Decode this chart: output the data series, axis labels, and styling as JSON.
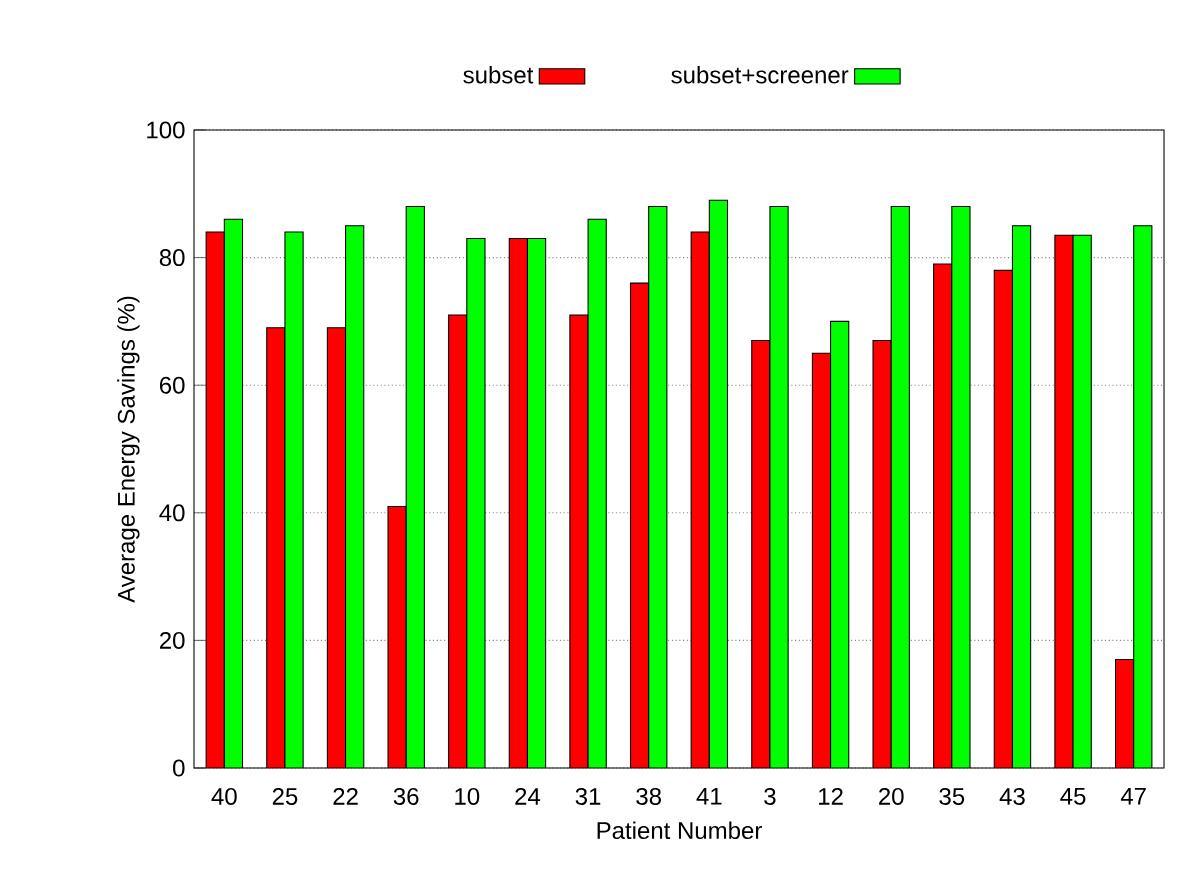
{
  "chart_data": {
    "type": "bar",
    "xlabel": "Patient Number",
    "ylabel": "Average Energy Savings (%)",
    "categories": [
      "40",
      "25",
      "22",
      "36",
      "10",
      "24",
      "31",
      "38",
      "41",
      "3",
      "12",
      "20",
      "35",
      "43",
      "45",
      "47"
    ],
    "series": [
      {
        "name": "subset",
        "color": "#ff0000",
        "values": [
          84,
          69,
          69,
          41,
          71,
          83,
          71,
          76,
          84,
          67,
          65,
          67,
          79,
          78,
          83.5,
          17
        ]
      },
      {
        "name": "subset+screener",
        "color": "#00ff00",
        "values": [
          86,
          84,
          85,
          88,
          83,
          83,
          86,
          88,
          89,
          88,
          70,
          88,
          88,
          85,
          83.5,
          85
        ]
      }
    ],
    "ylim": [
      0,
      100
    ],
    "yticks": [
      0,
      20,
      40,
      60,
      80,
      100
    ],
    "grid": "y",
    "legend": "top"
  }
}
